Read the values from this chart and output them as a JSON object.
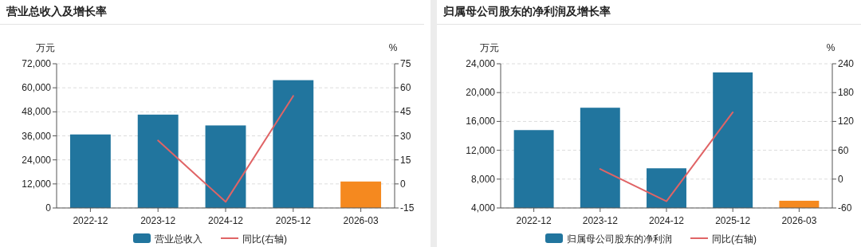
{
  "chart_data": [
    {
      "type": "bar",
      "title": "营业总收入及增长率",
      "ylabel": "万元",
      "y2label": "%",
      "categories": [
        "2022-12",
        "2023-12",
        "2024-12",
        "2025-12",
        "2026-03"
      ],
      "series": [
        {
          "name": "营业总收入",
          "color": "#21759e",
          "colors": [
            "#21759e",
            "#21759e",
            "#21759e",
            "#21759e",
            "#f5891f"
          ],
          "values": [
            36700,
            46600,
            41200,
            63800,
            13200
          ]
        },
        {
          "name": "同比(右轴)",
          "type": "line",
          "axis": "y2",
          "color": "#e06466",
          "values": [
            null,
            27.1,
            -11.2,
            54.9,
            null
          ]
        }
      ],
      "ylim": [
        0,
        72000
      ],
      "yticks": [
        0,
        {
          "value": 12000,
          "label": "12,000"
        },
        {
          "value": 24000,
          "label": "24,000"
        },
        {
          "value": 36000,
          "label": "36,000"
        },
        {
          "value": 48000,
          "label": "48,000"
        },
        {
          "value": 60000,
          "label": "60,000"
        },
        {
          "value": 72000,
          "label": "72,000"
        }
      ],
      "y2lim": [
        -15,
        75
      ],
      "y2ticks": [
        -15,
        0,
        15,
        30,
        45,
        60,
        75
      ],
      "grid": "y",
      "legend": "bottom"
    },
    {
      "type": "bar",
      "title": "归属母公司股东的净利润及增长率",
      "ylabel": "万元",
      "y2label": "%",
      "categories": [
        "2022-12",
        "2023-12",
        "2024-12",
        "2025-12",
        "2026-03"
      ],
      "series": [
        {
          "name": "归属母公司股东的净利润",
          "color": "#21759e",
          "colors": [
            "#21759e",
            "#21759e",
            "#21759e",
            "#21759e",
            "#f5891f"
          ],
          "values": [
            14800,
            17900,
            9500,
            22800,
            5000
          ]
        },
        {
          "name": "同比(右轴)",
          "type": "line",
          "axis": "y2",
          "color": "#e06466",
          "values": [
            null,
            21,
            -46,
            139,
            null
          ]
        }
      ],
      "ylim": [
        4000,
        24000
      ],
      "yticks": [
        {
          "value": 4000,
          "label": "4,000"
        },
        {
          "value": 8000,
          "label": "8,000"
        },
        {
          "value": 12000,
          "label": "12,000"
        },
        {
          "value": 16000,
          "label": "16,000"
        },
        {
          "value": 20000,
          "label": "20,000"
        },
        {
          "value": 24000,
          "label": "24,000"
        }
      ],
      "y2lim": [
        -60,
        240
      ],
      "y2ticks": [
        -60,
        0,
        60,
        120,
        180,
        240
      ],
      "grid": "y",
      "legend": "bottom"
    }
  ]
}
